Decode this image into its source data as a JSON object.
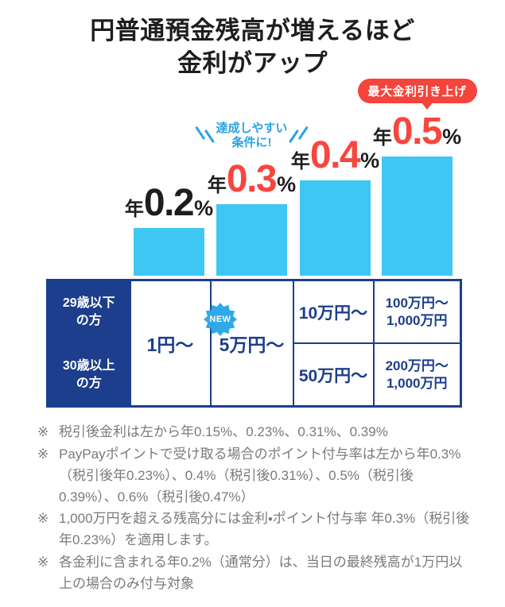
{
  "title": {
    "line1": "円普通預金残高が増えるほど",
    "line2": "金利がアップ"
  },
  "chart_data": {
    "type": "bar",
    "title": "円普通預金残高が増えるほど金利がアップ",
    "categories": [
      "1円〜",
      "5万円〜",
      "10万円〜",
      "100万円〜1,000万円"
    ],
    "values": [
      0.2,
      0.3,
      0.4,
      0.5
    ],
    "xlabel": "",
    "ylabel": "",
    "ylim": [
      0,
      0.55
    ],
    "grid": false,
    "legend": "none",
    "bar_color": "#3ec7f2",
    "bars": [
      {
        "prefix": "年",
        "number": "0.2",
        "suffix": "%",
        "number_color": "#1e1e1e"
      },
      {
        "prefix": "年",
        "number": "0.3",
        "suffix": "%",
        "number_color": "#f8453e"
      },
      {
        "prefix": "年",
        "number": "0.4",
        "suffix": "%",
        "number_color": "#f8453e"
      },
      {
        "prefix": "年",
        "number": "0.5",
        "suffix": "%",
        "number_color": "#f8453e"
      }
    ],
    "callout": {
      "bar_index": 1,
      "line1": "達成しやすい",
      "line2": "条件に!"
    },
    "max_badge": {
      "bar_index": 3,
      "label": "最大金利引き上げ"
    }
  },
  "table": {
    "row_headers": [
      {
        "line1": "29歳以下",
        "line2": "の方"
      },
      {
        "line1": "30歳以上",
        "line2": "の方"
      }
    ],
    "spanning_cells": [
      "1円〜",
      "5万円〜"
    ],
    "new_badge": "NEW",
    "rows": [
      {
        "c3": "10万円〜",
        "c4": {
          "line1": "100万円〜",
          "line2": "1,000万円"
        }
      },
      {
        "c3": "50万円〜",
        "c4": {
          "line1": "200万円〜",
          "line2": "1,000万円"
        }
      }
    ]
  },
  "footnotes": {
    "mark": "※",
    "items": [
      "税引後金利は左から年0.15%、0.23%、0.31%、0.39%",
      "PayPayポイントで受け取る場合のポイント付与率は左から年0.3%（税引後年0.23%）、0.4%（税引後0.31%）、0.5%（税引後0.39%）、0.6%（税引後0.47%）",
      "1,000万円を超える残高分には金利・ポイント付与率 年0.3%（税引後年0.23%）を適用します。",
      "各金利に含まれる年0.2%（通常分）は、当日の最終残高が1万円以上の場合のみ付与対象"
    ]
  },
  "colors": {
    "bar": "#3ec7f2",
    "navy": "#1c3e8c",
    "red": "#f8453e",
    "callout_blue": "#2ba2e5",
    "new_badge_blue": "#2fa9e9",
    "title_text": "#1e1e1e",
    "footnote_gray": "#7a7a7a"
  }
}
